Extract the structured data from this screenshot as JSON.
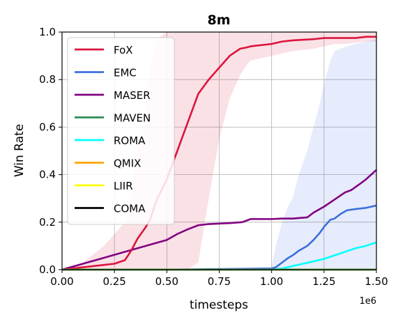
{
  "chart_data": {
    "type": "line",
    "title": "8m",
    "xlabel": "timesteps",
    "ylabel": "Win Rate",
    "x_offset_label": "1e6",
    "xlim": [
      0,
      1.5
    ],
    "ylim": [
      0,
      1.0
    ],
    "xticks": [
      "0.00",
      "0.25",
      "0.50",
      "0.75",
      "1.00",
      "1.25",
      "1.50"
    ],
    "yticks": [
      "0.0",
      "0.2",
      "0.4",
      "0.6",
      "0.8",
      "1.0"
    ],
    "grid": true,
    "legend_position": "upper-left",
    "series": [
      {
        "name": "FoX",
        "color": "#dc143c",
        "x": [
          0,
          0.1,
          0.2,
          0.25,
          0.3,
          0.33,
          0.36,
          0.4,
          0.42,
          0.45,
          0.5,
          0.55,
          0.6,
          0.65,
          0.7,
          0.75,
          0.8,
          0.85,
          0.88,
          0.9,
          1.0,
          1.05,
          1.1,
          1.2,
          1.25,
          1.3,
          1.35,
          1.4,
          1.45,
          1.5
        ],
        "y": [
          0,
          0.01,
          0.02,
          0.025,
          0.04,
          0.08,
          0.13,
          0.18,
          0.21,
          0.29,
          0.38,
          0.5,
          0.62,
          0.74,
          0.8,
          0.85,
          0.9,
          0.93,
          0.935,
          0.94,
          0.95,
          0.96,
          0.965,
          0.97,
          0.975,
          0.975,
          0.975,
          0.975,
          0.98,
          0.98
        ],
        "band_low": [
          0,
          0,
          0,
          0,
          0,
          0,
          0,
          0,
          0,
          0,
          0,
          0,
          0,
          0.03,
          0.3,
          0.55,
          0.72,
          0.82,
          0.86,
          0.88,
          0.9,
          0.91,
          0.92,
          0.93,
          0.94,
          0.95,
          0.95,
          0.955,
          0.96,
          0.96
        ],
        "band_high": [
          0,
          0.03,
          0.1,
          0.15,
          0.2,
          0.3,
          0.5,
          0.7,
          0.85,
          0.97,
          1.0,
          1.0,
          1.0,
          1.0,
          1.0,
          1.0,
          1.0,
          1.0,
          1.0,
          1.0,
          1.0,
          1.0,
          1.0,
          1.0,
          1.0,
          1.0,
          1.0,
          1.0,
          1.0,
          1.0
        ]
      },
      {
        "name": "EMC",
        "color": "#3b6fe0",
        "x": [
          0,
          0.5,
          1.0,
          1.02,
          1.05,
          1.08,
          1.1,
          1.13,
          1.17,
          1.2,
          1.23,
          1.25,
          1.28,
          1.3,
          1.33,
          1.36,
          1.4,
          1.45,
          1.5
        ],
        "y": [
          0,
          0,
          0.005,
          0.01,
          0.03,
          0.05,
          0.06,
          0.08,
          0.1,
          0.125,
          0.155,
          0.18,
          0.21,
          0.215,
          0.235,
          0.25,
          0.255,
          0.26,
          0.27
        ],
        "band_low": [
          0,
          0,
          0,
          0,
          0,
          0,
          0,
          0,
          0,
          0,
          0,
          0,
          0,
          0,
          0,
          0,
          0,
          0,
          0
        ],
        "band_high": [
          0,
          0,
          0.01,
          0.1,
          0.2,
          0.27,
          0.3,
          0.4,
          0.5,
          0.6,
          0.7,
          0.78,
          0.88,
          0.92,
          0.93,
          0.94,
          0.95,
          0.96,
          0.97
        ]
      },
      {
        "name": "MASER",
        "color": "#800080",
        "x": [
          0,
          0.1,
          0.2,
          0.3,
          0.4,
          0.5,
          0.55,
          0.6,
          0.65,
          0.7,
          0.8,
          0.86,
          0.9,
          1.0,
          1.05,
          1.1,
          1.17,
          1.2,
          1.25,
          1.3,
          1.35,
          1.38,
          1.42,
          1.45,
          1.5
        ],
        "y": [
          0,
          0.025,
          0.05,
          0.075,
          0.1,
          0.125,
          0.15,
          0.17,
          0.187,
          0.192,
          0.196,
          0.2,
          0.213,
          0.213,
          0.215,
          0.215,
          0.22,
          0.24,
          0.265,
          0.295,
          0.325,
          0.335,
          0.36,
          0.38,
          0.42
        ],
        "band_low": [],
        "band_high": []
      },
      {
        "name": "MAVEN",
        "color": "#2e8b57",
        "x": [
          0,
          1.5
        ],
        "y": [
          0,
          0
        ],
        "band_low": [],
        "band_high": []
      },
      {
        "name": "ROMA",
        "color": "#00ffff",
        "x": [
          0,
          1.0,
          1.05,
          1.1,
          1.15,
          1.2,
          1.25,
          1.3,
          1.35,
          1.4,
          1.45,
          1.5
        ],
        "y": [
          0,
          0,
          0.005,
          0.015,
          0.025,
          0.035,
          0.045,
          0.06,
          0.075,
          0.09,
          0.1,
          0.115
        ],
        "band_low": [],
        "band_high": []
      },
      {
        "name": "QMIX",
        "color": "#ffa500",
        "x": [
          0,
          1.5
        ],
        "y": [
          0,
          0
        ],
        "band_low": [],
        "band_high": []
      },
      {
        "name": "LIIR",
        "color": "#ffff00",
        "x": [
          0,
          1.5
        ],
        "y": [
          0,
          0
        ],
        "band_low": [],
        "band_high": []
      },
      {
        "name": "COMA",
        "color": "#000000",
        "x": [
          0,
          1.5
        ],
        "y": [
          0,
          0
        ],
        "band_low": [],
        "band_high": []
      }
    ]
  }
}
